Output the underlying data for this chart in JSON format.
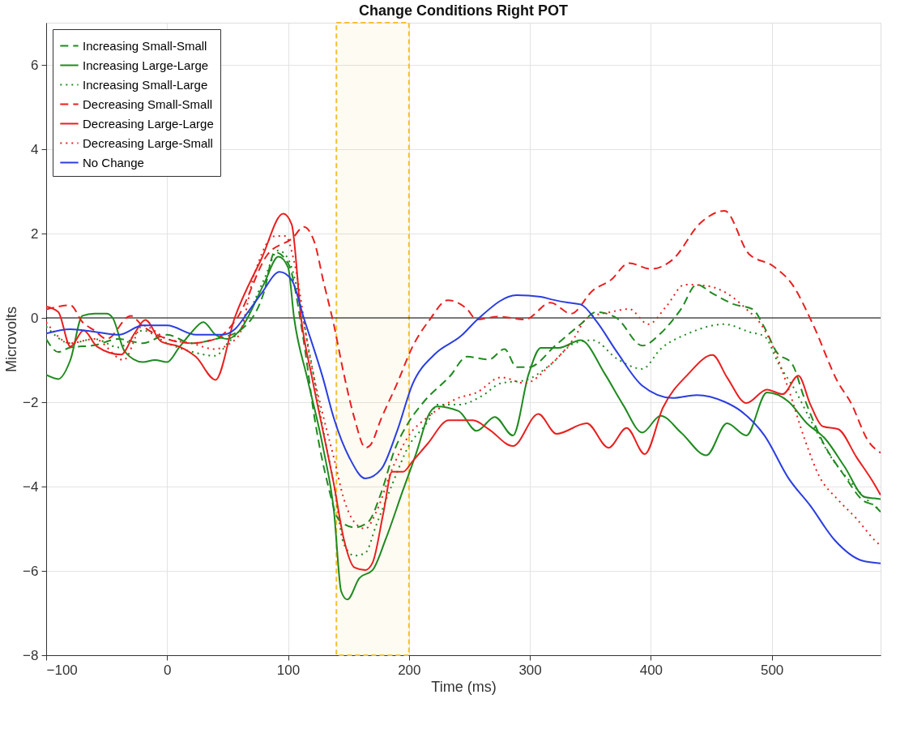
{
  "chart_data": {
    "type": "line",
    "title": "Change Conditions Right POT",
    "xlabel": "Time (ms)",
    "ylabel": "Microvolts",
    "xlim": [
      -100,
      590
    ],
    "xticks": [
      -100,
      0,
      100,
      200,
      300,
      400,
      500
    ],
    "ylim": [
      -8,
      7
    ],
    "yticks": [
      -8,
      -6,
      -4,
      -2,
      0,
      2,
      4,
      6
    ],
    "grid": true,
    "legend": "top left",
    "ref_lines": [
      {
        "axis": "y",
        "value": 0,
        "color": "#000000"
      }
    ],
    "bands": [
      {
        "axis": "x",
        "from": 140,
        "to": 200,
        "color": "#f2c12e"
      }
    ],
    "series": [
      {
        "name": "Increasing Small-Small",
        "color": "#1f8a1f",
        "line_style": "dashed",
        "x": [
          -100,
          -90,
          -80,
          -60,
          -40,
          -20,
          0,
          20,
          40,
          60,
          80,
          89,
          100,
          113,
          122,
          133,
          142,
          155,
          166,
          177,
          188,
          199,
          212,
          234,
          248,
          266,
          279,
          289,
          299,
          322,
          342,
          355,
          372,
          393,
          408,
          425,
          438,
          451,
          469,
          484,
          494,
          504,
          517,
          527,
          542,
          560,
          575,
          585,
          590
        ],
        "values": [
          -0.5,
          -0.81,
          -0.7,
          -0.65,
          -0.5,
          -0.6,
          -0.4,
          -0.6,
          -0.5,
          -0.3,
          0.6,
          1.56,
          1.3,
          -0.56,
          -2.39,
          -3.96,
          -4.79,
          -4.97,
          -4.85,
          -4.15,
          -3.14,
          -2.51,
          -2.0,
          -1.38,
          -0.92,
          -0.99,
          -0.74,
          -1.17,
          -1.17,
          -0.63,
          -0.15,
          0.14,
          -0.01,
          -0.66,
          -0.37,
          0.21,
          0.79,
          0.58,
          0.32,
          0.21,
          -0.23,
          -0.81,
          -1.1,
          -1.91,
          -2.93,
          -3.74,
          -4.32,
          -4.46,
          -4.6
        ]
      },
      {
        "name": "Increasing Large-Large",
        "color": "#1f8a1f",
        "line_style": "solid",
        "x": [
          -100,
          -90,
          -80,
          -70,
          -60,
          -50,
          -45,
          -35,
          -20,
          -10,
          0,
          10,
          20,
          30,
          40,
          50,
          60,
          80,
          92,
          100,
          105,
          116,
          129,
          138,
          144,
          149,
          159,
          170,
          181,
          195,
          206,
          217,
          223,
          241,
          256,
          271,
          286,
          299,
          309,
          324,
          342,
          362,
          377,
          393,
          408,
          425,
          446,
          463,
          479,
          496,
          514,
          529,
          544,
          560,
          577,
          585,
          590
        ],
        "values": [
          -1.35,
          -1.45,
          -1.0,
          0.05,
          0.1,
          0.1,
          0.0,
          -0.8,
          -1.05,
          -1.0,
          -1.05,
          -0.7,
          -0.35,
          -0.1,
          -0.4,
          -0.5,
          -0.3,
          0.8,
          1.45,
          1.2,
          0.0,
          -1.44,
          -3.08,
          -4.6,
          -6.49,
          -6.68,
          -6.17,
          -5.98,
          -5.23,
          -4.09,
          -3.21,
          -2.26,
          -2.1,
          -2.21,
          -2.68,
          -2.35,
          -2.79,
          -1.33,
          -0.71,
          -0.71,
          -0.53,
          -1.33,
          -2.06,
          -2.72,
          -2.32,
          -2.72,
          -3.26,
          -2.5,
          -2.79,
          -1.77,
          -1.99,
          -2.5,
          -2.86,
          -3.52,
          -4.25,
          -4.28,
          -4.3
        ]
      },
      {
        "name": "Increasing Small-Large",
        "color": "#1f8a1f",
        "line_style": "dotted",
        "x": [
          -100,
          -80,
          -60,
          -40,
          -20,
          0,
          20,
          40,
          50,
          60,
          80,
          92,
          100,
          118,
          129,
          138,
          146,
          155,
          164,
          173,
          186,
          199,
          217,
          223,
          241,
          261,
          276,
          296,
          317,
          337,
          352,
          372,
          393,
          408,
          431,
          461,
          481,
          494,
          506,
          519,
          532,
          549,
          567,
          585,
          590
        ],
        "values": [
          -0.2,
          -0.6,
          -0.5,
          -0.7,
          -0.3,
          -0.6,
          -0.8,
          -0.9,
          -0.6,
          -0.3,
          0.9,
          1.6,
          1.4,
          -0.87,
          -2.64,
          -3.96,
          -5.35,
          -5.64,
          -5.57,
          -4.91,
          -3.96,
          -3.08,
          -2.39,
          -2.06,
          -2.06,
          -1.84,
          -1.55,
          -1.48,
          -1.11,
          -0.6,
          -0.53,
          -0.97,
          -1.21,
          -0.74,
          -0.37,
          -0.15,
          -0.33,
          -0.44,
          -1.11,
          -1.7,
          -2.42,
          -3.3,
          -3.95,
          -4.46,
          -4.55
        ]
      },
      {
        "name": "Decreasing Small-Small",
        "color": "#e8201f",
        "line_style": "dashed",
        "x": [
          -100,
          -80,
          -70,
          -60,
          -50,
          -30,
          -20,
          0,
          20,
          40,
          58,
          83,
          104,
          113,
          122,
          129,
          138,
          146,
          155,
          164,
          168,
          177,
          190,
          203,
          217,
          232,
          248,
          256,
          274,
          296,
          317,
          334,
          352,
          367,
          382,
          400,
          418,
          441,
          461,
          481,
          501,
          517,
          534,
          555,
          565,
          580,
          590
        ],
        "values": [
          0.2,
          0.3,
          -0.1,
          -0.3,
          -0.5,
          0.05,
          -0.2,
          -0.5,
          -0.6,
          -0.5,
          0.0,
          1.5,
          1.9,
          2.16,
          1.78,
          0.9,
          -0.18,
          -1.31,
          -2.39,
          -3.08,
          -3.02,
          -2.39,
          -1.57,
          -0.68,
          -0.05,
          0.42,
          0.21,
          -0.04,
          0.03,
          -0.04,
          0.36,
          0.1,
          0.65,
          0.9,
          1.3,
          1.16,
          1.38,
          2.25,
          2.54,
          1.52,
          1.23,
          0.79,
          -0.15,
          -1.54,
          -1.99,
          -2.93,
          -3.2
        ]
      },
      {
        "name": "Decreasing Large-Large",
        "color": "#e8201f",
        "line_style": "solid",
        "x": [
          -100,
          -90,
          -80,
          -69,
          -58,
          -38,
          -27,
          -18,
          -5,
          10,
          24,
          40,
          56,
          78,
          96,
          103,
          111,
          120,
          129,
          138,
          146,
          155,
          164,
          170,
          179,
          186,
          195,
          203,
          215,
          233,
          253,
          266,
          286,
          307,
          322,
          347,
          365,
          380,
          395,
          410,
          431,
          451,
          463,
          479,
          496,
          509,
          522,
          532,
          542,
          555,
          570,
          585,
          590
        ],
        "values": [
          0.27,
          0.14,
          -0.68,
          -0.3,
          -0.68,
          -0.87,
          -0.37,
          -0.05,
          -0.56,
          -0.68,
          -0.93,
          -1.47,
          0.01,
          1.4,
          2.47,
          2.22,
          -0.05,
          -1.44,
          -2.7,
          -3.96,
          -5.23,
          -5.92,
          -5.98,
          -5.8,
          -4.6,
          -3.65,
          -3.65,
          -3.4,
          -3.0,
          -2.43,
          -2.43,
          -2.64,
          -3.04,
          -2.28,
          -2.75,
          -2.5,
          -3.08,
          -2.61,
          -3.23,
          -2.13,
          -1.33,
          -0.88,
          -1.41,
          -2.02,
          -1.7,
          -1.81,
          -1.37,
          -2.06,
          -2.57,
          -2.64,
          -3.3,
          -3.95,
          -4.2
        ]
      },
      {
        "name": "Decreasing Large-Small",
        "color": "#e8201f",
        "line_style": "dotted",
        "x": [
          -100,
          -80,
          -60,
          -36,
          -20,
          0,
          20,
          39,
          59,
          72,
          89,
          98,
          105,
          118,
          129,
          138,
          146,
          155,
          164,
          173,
          186,
          199,
          217,
          240,
          256,
          276,
          296,
          317,
          337,
          347,
          367,
          382,
          398,
          413,
          428,
          446,
          463,
          479,
          491,
          501,
          514,
          527,
          539,
          555,
          570,
          585,
          590
        ],
        "values": [
          -0.1,
          -0.6,
          -0.5,
          -1.0,
          -0.18,
          -0.5,
          -0.6,
          -0.74,
          -0.43,
          1.02,
          1.94,
          1.94,
          1.34,
          -0.93,
          -2.32,
          -3.33,
          -4.28,
          -4.85,
          -5.0,
          -4.6,
          -3.59,
          -2.83,
          -2.32,
          -1.91,
          -1.77,
          -1.41,
          -1.55,
          -1.11,
          -0.46,
          -0.01,
          0.14,
          0.21,
          -0.15,
          0.28,
          0.79,
          0.76,
          0.58,
          0.21,
          -0.15,
          -0.68,
          -1.7,
          -2.86,
          -3.74,
          -4.32,
          -4.76,
          -5.27,
          -5.4
        ]
      },
      {
        "name": "No Change",
        "color": "#2b3ee0",
        "line_style": "solid",
        "x": [
          -100,
          -80,
          -62,
          -40,
          -20,
          0,
          24,
          46,
          56,
          67,
          78,
          93,
          103,
          113,
          129,
          138,
          151,
          164,
          177,
          190,
          203,
          221,
          243,
          258,
          289,
          309,
          319,
          332,
          342,
          355,
          372,
          393,
          418,
          438,
          461,
          474,
          494,
          514,
          532,
          552,
          575,
          590
        ],
        "values": [
          -0.37,
          -0.27,
          -0.32,
          -0.4,
          -0.18,
          -0.18,
          -0.4,
          -0.4,
          -0.27,
          0.14,
          0.58,
          1.09,
          0.9,
          0.0,
          -1.44,
          -2.39,
          -3.33,
          -3.81,
          -3.59,
          -2.7,
          -1.57,
          -0.87,
          -0.43,
          0.0,
          0.54,
          0.5,
          0.43,
          0.36,
          0.32,
          -0.08,
          -0.81,
          -1.61,
          -1.9,
          -1.83,
          -1.99,
          -2.2,
          -2.79,
          -3.81,
          -4.46,
          -5.27,
          -5.76,
          -5.82
        ]
      }
    ]
  }
}
